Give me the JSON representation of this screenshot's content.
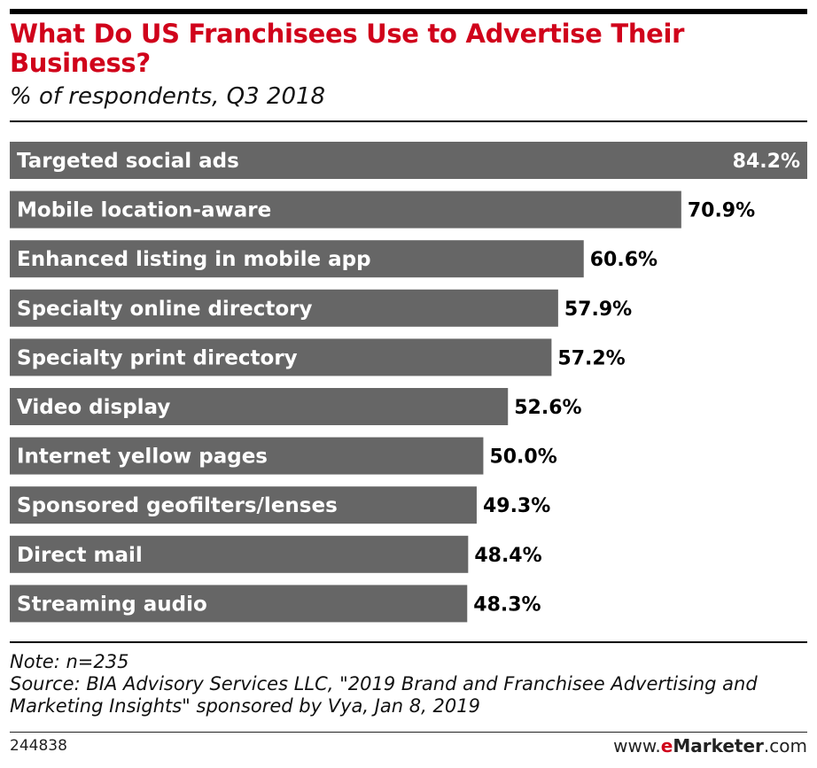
{
  "chart_data": {
    "type": "bar",
    "orientation": "horizontal",
    "title": "What Do US Franchisees Use to Advertise Their Business?",
    "subtitle": "% of respondents, Q3 2018",
    "categories": [
      "Targeted social ads",
      "Mobile location-aware",
      "Enhanced listing in mobile app",
      "Specialty online directory",
      "Specialty print directory",
      "Video display",
      "Internet yellow pages",
      "Sponsored geofilters/lenses",
      "Direct mail",
      "Streaming audio"
    ],
    "values": [
      84.2,
      70.9,
      60.6,
      57.9,
      57.2,
      52.6,
      50.0,
      49.3,
      48.4,
      48.3
    ],
    "value_labels": [
      "84.2%",
      "70.9%",
      "60.6%",
      "57.9%",
      "57.2%",
      "52.6%",
      "50.0%",
      "49.3%",
      "48.4%",
      "48.3%"
    ],
    "xlim": [
      0,
      84.2
    ],
    "grid": false,
    "bar_color": "#666666",
    "title_color": "#d0021b"
  },
  "footer": {
    "note": "Note: n=235",
    "source": "Source: BIA Advisory Services LLC, \"2019 Brand and Franchisee Advertising and Marketing Insights\" sponsored by Vya, Jan 8, 2019",
    "chart_id": "244838",
    "brand_prefix": "www.",
    "brand_accent": "e",
    "brand_name": "Marketer",
    "brand_suffix": ".com"
  }
}
